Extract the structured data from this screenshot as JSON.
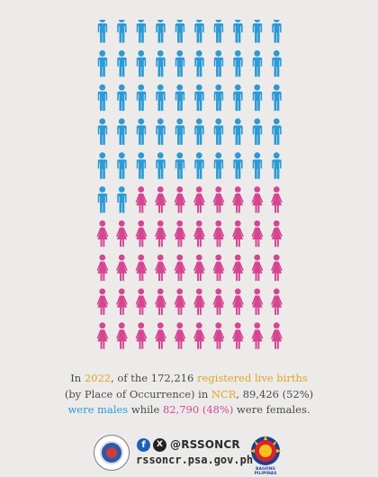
{
  "pictograph": {
    "total_icons": 100,
    "male_icons": 52,
    "female_icons": 48,
    "columns": 10,
    "male_color": "#2c9ad5",
    "female_color": "#d54692",
    "male_icon": "man-icon",
    "female_icon": "woman-icon"
  },
  "caption": {
    "part1": "In ",
    "year": "2022",
    "part2": ", of the 172,216 ",
    "highlight1": "registered live births",
    "line2a": "(by Place of Occurrence) in ",
    "region": "NCR",
    "line2b": ", 89,426 (52%)",
    "males": "were males",
    "part3": " while ",
    "females": "82,790 (48%)",
    "part4": " were females."
  },
  "footer": {
    "facebook_icon": "facebook-icon",
    "x_icon": "x-icon",
    "handle": "@RSSONCR",
    "url": "rssoncr.psa.gov.ph",
    "seal_icon": "psa-seal-icon",
    "bagong_pilipinas_logo": "BAGONG PILIPINAS"
  }
}
